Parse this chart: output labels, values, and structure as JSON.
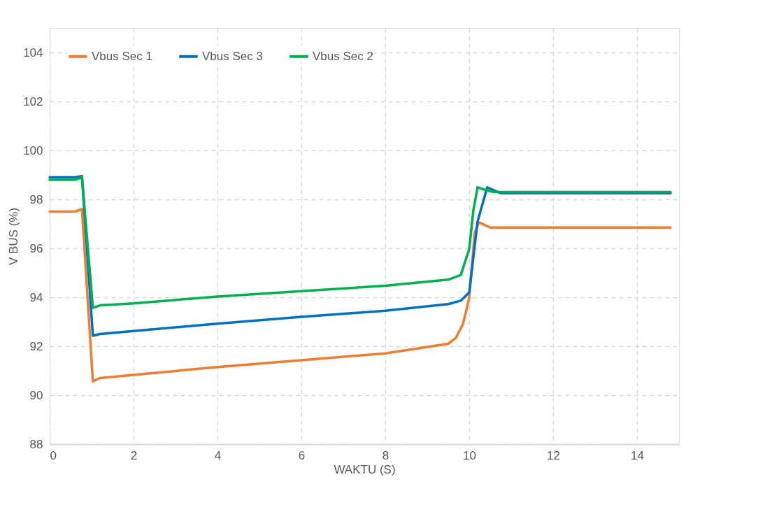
{
  "chart_data": {
    "type": "line",
    "xlabel": "WAKTU (S)",
    "ylabel": "V BUS (%)",
    "xlim": [
      0,
      15
    ],
    "xticks": [
      0,
      2,
      4,
      6,
      8,
      10,
      12,
      14
    ],
    "ylim": [
      88,
      105
    ],
    "yticks": [
      88,
      90,
      92,
      94,
      96,
      98,
      100,
      102,
      104
    ],
    "grid": true,
    "legend": "top left",
    "line_style": "solid",
    "marker": "none",
    "series": [
      {
        "name": "Vbus Sec 1",
        "color": "#ed7d31",
        "x": [
          0,
          0.6,
          0.77,
          1.03,
          1.2,
          2,
          4,
          6,
          8,
          9.5,
          9.68,
          9.85,
          10,
          10.13,
          10.23,
          10.5,
          12,
          14,
          14.8
        ],
        "values": [
          97.5,
          97.5,
          97.6,
          90.57,
          90.7,
          90.83,
          91.15,
          91.43,
          91.71,
          92.1,
          92.34,
          92.9,
          93.97,
          96.63,
          97.06,
          96.85,
          96.85,
          96.85,
          96.85
        ]
      },
      {
        "name": "Vbus Sec 3",
        "color": "#0070c0",
        "x": [
          0,
          0.6,
          0.77,
          1.03,
          1.2,
          2,
          4,
          6,
          8,
          9.5,
          9.8,
          10,
          10.2,
          10.43,
          10.75,
          12,
          14,
          14.8
        ],
        "values": [
          98.9,
          98.9,
          98.95,
          92.43,
          92.5,
          92.62,
          92.92,
          93.2,
          93.45,
          93.72,
          93.86,
          94.2,
          97.1,
          98.49,
          98.25,
          98.25,
          98.25,
          98.25
        ]
      },
      {
        "name": "Vbus Sec 2",
        "color": "#00b050",
        "x": [
          0,
          0.6,
          0.77,
          1.03,
          1.2,
          2,
          4,
          6,
          8,
          9.5,
          9.8,
          10,
          10.1,
          10.2,
          10.45,
          10.6,
          12,
          14,
          14.8
        ],
        "values": [
          98.8,
          98.8,
          98.9,
          93.57,
          93.67,
          93.75,
          94.03,
          94.25,
          94.47,
          94.72,
          94.91,
          95.97,
          97.57,
          98.49,
          98.35,
          98.3,
          98.3,
          98.3,
          98.3
        ]
      }
    ]
  }
}
